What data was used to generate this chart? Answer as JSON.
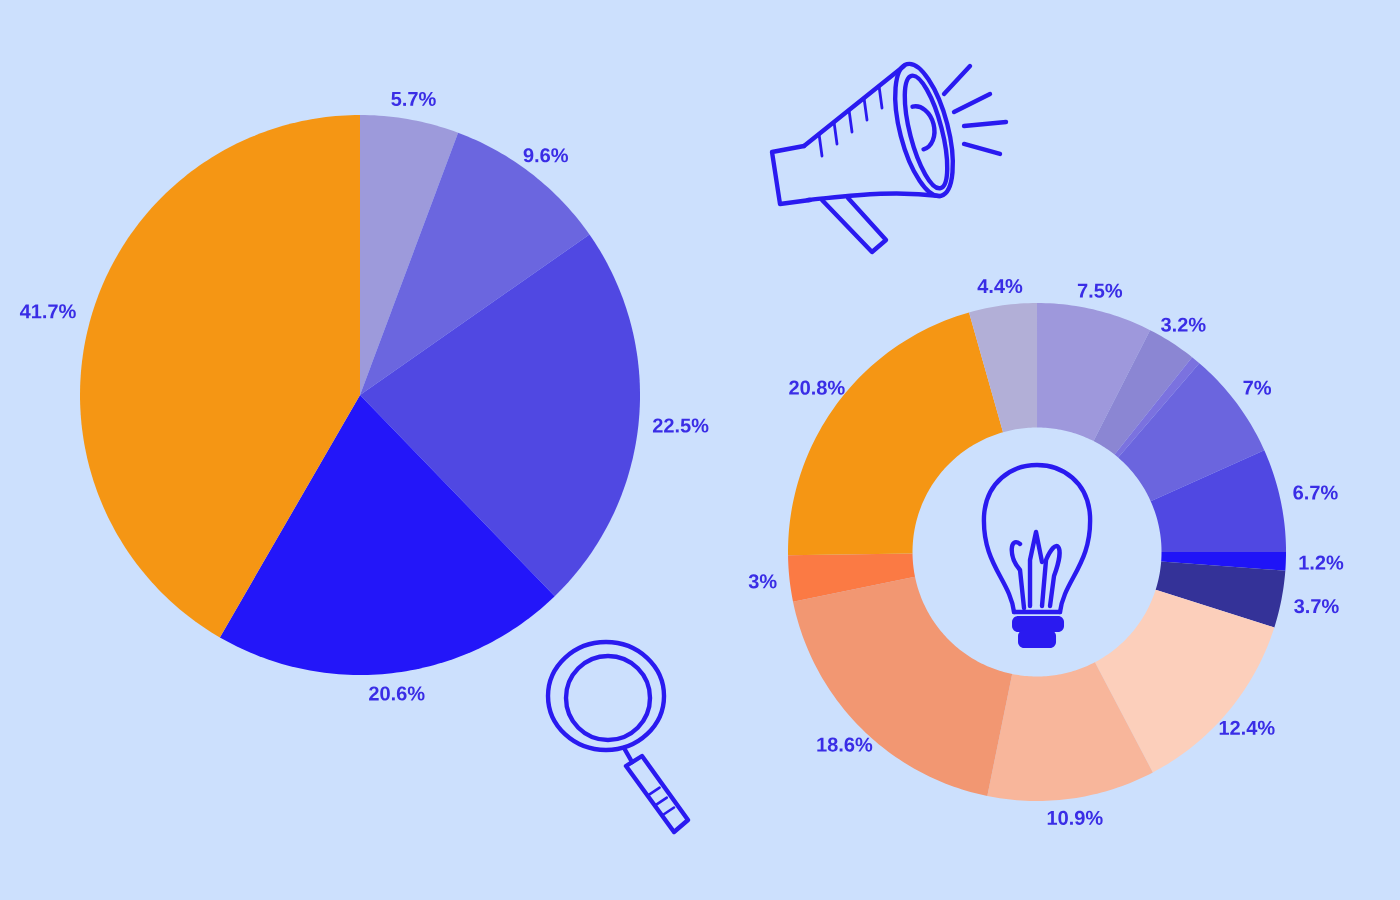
{
  "chart_data": [
    {
      "type": "pie",
      "categories": [
        null,
        null,
        null,
        null,
        null
      ],
      "values": [
        5.7,
        9.6,
        22.5,
        20.6,
        41.7
      ],
      "colors": [
        "#9d9adb",
        "#6b66df",
        "#5048e2",
        "#2316f9",
        "#f59614"
      ],
      "value_labels": [
        "5.7%",
        "9.6%",
        "22.5%",
        "20.6%",
        "41.7%"
      ]
    },
    {
      "type": "donut",
      "categories": [
        null,
        null,
        null,
        null,
        null,
        null,
        null,
        null,
        null,
        null,
        null,
        null,
        null
      ],
      "values": [
        7.5,
        3.2,
        0.6,
        7,
        6.7,
        1.2,
        3.7,
        12.4,
        10.9,
        18.6,
        3,
        20.8,
        4.4
      ],
      "colors": [
        "#9e98dc",
        "#8b86d3",
        "#7b72df",
        "#6b65de",
        "#5048e2",
        "#1f14f7",
        "#343298",
        "#fccfbb",
        "#f8b69b",
        "#f29772",
        "#fb7a44",
        "#f59614",
        "#b2afd7"
      ],
      "value_labels": [
        "7.5%",
        "3.2%",
        null,
        "7%",
        "6.7%",
        "1.2%",
        "3.7%",
        "12.4%",
        "10.9%",
        "18.6%",
        "3%",
        "20.8%",
        "4.4%"
      ]
    }
  ]
}
